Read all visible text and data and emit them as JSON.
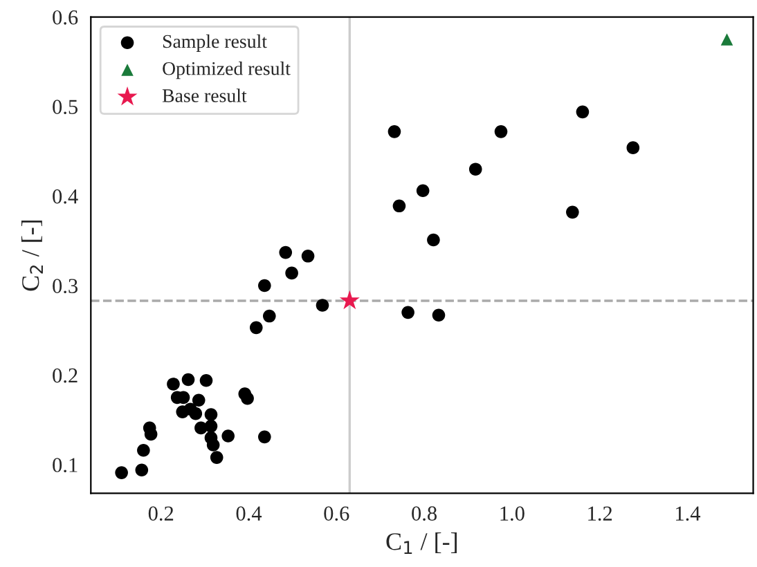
{
  "chart_data": {
    "type": "scatter",
    "xlabel": "C$_{1}$ / [-]",
    "ylabel": "C$_{2}$ / [-]",
    "xlim": [
      0.04,
      1.55
    ],
    "ylim": [
      0.068,
      0.6
    ],
    "xticks": [
      0.2,
      0.4,
      0.6,
      0.8,
      {
        "value": 1.0,
        "label": "1.0"
      },
      1.2,
      1.4
    ],
    "yticks": [
      0.1,
      0.2,
      0.3,
      0.4,
      0.5,
      0.6
    ],
    "grid": false,
    "legend": "top left",
    "series": [
      {
        "name": "Sample result",
        "color": "#000000",
        "marker": "circle",
        "x": [
          0.732,
          0.975,
          1.161,
          1.276,
          0.917,
          0.797,
          0.743,
          1.138,
          0.821,
          0.484,
          0.535,
          0.498,
          0.436,
          0.568,
          0.763,
          0.833,
          0.447,
          0.417,
          0.228,
          0.262,
          0.303,
          0.237,
          0.251,
          0.286,
          0.391,
          0.397,
          0.249,
          0.267,
          0.279,
          0.314,
          0.174,
          0.177,
          0.291,
          0.314,
          0.314,
          0.353,
          0.436,
          0.319,
          0.327,
          0.16,
          0.156,
          0.11
        ],
        "values": [
          0.472,
          0.472,
          0.494,
          0.454,
          0.43,
          0.406,
          0.389,
          0.382,
          0.351,
          0.337,
          0.333,
          0.314,
          0.3,
          0.278,
          0.27,
          0.267,
          0.266,
          0.253,
          0.19,
          0.195,
          0.194,
          0.175,
          0.175,
          0.172,
          0.179,
          0.174,
          0.159,
          0.162,
          0.157,
          0.156,
          0.141,
          0.134,
          0.141,
          0.143,
          0.13,
          0.132,
          0.131,
          0.122,
          0.108,
          0.116,
          0.094,
          0.091
        ]
      },
      {
        "name": "Optimized result",
        "color": "#1a7a3a",
        "marker": "triangle",
        "x": [
          1.49
        ],
        "values": [
          0.575
        ]
      },
      {
        "name": "Base result",
        "color": "#e8194f",
        "marker": "star",
        "x": [
          0.63
        ],
        "values": [
          0.283
        ]
      }
    ],
    "ref_lines": [
      {
        "axis": "x",
        "value": 0.63,
        "color": "#cccccc",
        "line_style": "solid"
      },
      {
        "axis": "y",
        "value": 0.283,
        "color": "#aaaaaa",
        "line_style": "dashed"
      }
    ]
  }
}
